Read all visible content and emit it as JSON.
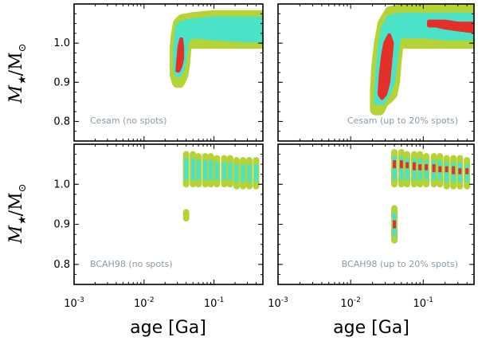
{
  "figure": {
    "xlabel": "age [Ga]",
    "ylabel_main": "M",
    "ylabel_sub": "★",
    "ylabel_rest": "/M",
    "ylabel_sun": "⊙"
  },
  "chart_data": [
    {
      "type": "scatter",
      "panel": "top-left",
      "annotation": "Cesam (no spots)",
      "xscale": "log",
      "xlim": [
        0.001,
        0.5
      ],
      "ylim": [
        0.75,
        1.1
      ],
      "xticks": [
        0.001,
        0.01,
        0.1
      ],
      "xticklabels": [
        "10-3",
        "10-2",
        "10-1"
      ],
      "yticks": [
        0.8,
        0.9,
        1.0
      ],
      "yticklabels": [
        "0.8",
        "0.9",
        "1.0"
      ],
      "colors": {
        "outer": "#b5d334",
        "inner": "#4be3c8",
        "core": "#e5302a"
      },
      "series": [
        {
          "name": "outer",
          "points": [
            [
              0.028,
              0.92
            ],
            [
              0.028,
              0.95
            ],
            [
              0.028,
              0.99
            ],
            [
              0.029,
              1.02
            ],
            [
              0.031,
              1.05
            ],
            [
              0.035,
              1.06
            ],
            [
              0.05,
              1.065
            ],
            [
              0.1,
              1.07
            ],
            [
              0.2,
              1.07
            ],
            [
              0.5,
              1.07
            ],
            [
              0.5,
              1.0
            ],
            [
              0.3,
              1.0
            ],
            [
              0.1,
              1.0
            ],
            [
              0.05,
              1.0
            ],
            [
              0.04,
              1.0
            ],
            [
              0.038,
              0.95
            ],
            [
              0.036,
              0.92
            ],
            [
              0.032,
              0.9
            ],
            [
              0.03,
              0.9
            ],
            [
              0.028,
              0.92
            ]
          ]
        },
        {
          "name": "inner",
          "points": [
            [
              0.029,
              0.93
            ],
            [
              0.029,
              0.99
            ],
            [
              0.031,
              1.04
            ],
            [
              0.035,
              1.05
            ],
            [
              0.05,
              1.055
            ],
            [
              0.1,
              1.06
            ],
            [
              0.2,
              1.06
            ],
            [
              0.5,
              1.06
            ],
            [
              0.5,
              1.01
            ],
            [
              0.3,
              1.01
            ],
            [
              0.1,
              1.015
            ],
            [
              0.05,
              1.02
            ],
            [
              0.04,
              1.01
            ],
            [
              0.037,
              0.96
            ],
            [
              0.034,
              0.93
            ],
            [
              0.031,
              0.92
            ],
            [
              0.029,
              0.93
            ]
          ]
        },
        {
          "name": "core",
          "points": [
            [
              0.03,
              0.93
            ],
            [
              0.031,
              0.96
            ],
            [
              0.032,
              0.99
            ],
            [
              0.034,
              1.01
            ],
            [
              0.035,
              0.99
            ],
            [
              0.035,
              0.96
            ],
            [
              0.033,
              0.94
            ],
            [
              0.031,
              0.93
            ]
          ]
        }
      ]
    },
    {
      "type": "scatter",
      "panel": "top-right",
      "annotation": "Cesam (up to 20% spots)",
      "xscale": "log",
      "xlim": [
        0.001,
        0.5
      ],
      "ylim": [
        0.75,
        1.1
      ],
      "xticks": [
        0.001,
        0.01,
        0.1
      ],
      "xticklabels": [
        "10-3",
        "10-2",
        "10-1"
      ],
      "yticks": [
        0.8,
        0.9,
        1.0
      ],
      "yticklabels": [
        "0.8",
        "0.9",
        "1.0"
      ],
      "colors": {
        "outer": "#b5d334",
        "inner": "#4be3c8",
        "core": "#e5302a"
      },
      "series": [
        {
          "name": "outer",
          "points": [
            [
              0.022,
              0.83
            ],
            [
              0.022,
              0.88
            ],
            [
              0.023,
              0.94
            ],
            [
              0.025,
              1.0
            ],
            [
              0.028,
              1.05
            ],
            [
              0.035,
              1.08
            ],
            [
              0.05,
              1.085
            ],
            [
              0.1,
              1.085
            ],
            [
              0.2,
              1.085
            ],
            [
              0.5,
              1.085
            ],
            [
              0.5,
              1.0
            ],
            [
              0.3,
              1.0
            ],
            [
              0.1,
              1.0
            ],
            [
              0.06,
              1.0
            ],
            [
              0.045,
              1.0
            ],
            [
              0.042,
              0.95
            ],
            [
              0.04,
              0.9
            ],
            [
              0.037,
              0.87
            ],
            [
              0.033,
              0.86
            ],
            [
              0.028,
              0.85
            ],
            [
              0.025,
              0.83
            ],
            [
              0.022,
              0.83
            ]
          ]
        },
        {
          "name": "inner",
          "points": [
            [
              0.023,
              0.85
            ],
            [
              0.024,
              0.92
            ],
            [
              0.026,
              0.99
            ],
            [
              0.029,
              1.04
            ],
            [
              0.035,
              1.065
            ],
            [
              0.05,
              1.07
            ],
            [
              0.1,
              1.07
            ],
            [
              0.5,
              1.07
            ],
            [
              0.5,
              1.015
            ],
            [
              0.2,
              1.015
            ],
            [
              0.1,
              1.02
            ],
            [
              0.06,
              1.02
            ],
            [
              0.045,
              1.02
            ],
            [
              0.04,
              0.95
            ],
            [
              0.037,
              0.9
            ],
            [
              0.032,
              0.87
            ],
            [
              0.027,
              0.85
            ],
            [
              0.023,
              0.85
            ]
          ]
        },
        {
          "name": "core",
          "points": [
            [
              0.025,
              0.87
            ],
            [
              0.026,
              0.92
            ],
            [
              0.028,
              0.97
            ],
            [
              0.03,
              1.0
            ],
            [
              0.034,
              1.02
            ],
            [
              0.037,
              1.0
            ],
            [
              0.035,
              0.95
            ],
            [
              0.033,
              0.9
            ],
            [
              0.03,
              0.87
            ],
            [
              0.027,
              0.86
            ]
          ]
        },
        {
          "name": "core-top",
          "points": [
            [
              0.12,
              1.055
            ],
            [
              0.15,
              1.055
            ],
            [
              0.2,
              1.055
            ],
            [
              0.3,
              1.05
            ],
            [
              0.5,
              1.05
            ],
            [
              0.5,
              1.03
            ],
            [
              0.3,
              1.035
            ],
            [
              0.2,
              1.04
            ],
            [
              0.15,
              1.045
            ],
            [
              0.12,
              1.045
            ]
          ]
        }
      ]
    },
    {
      "type": "scatter",
      "panel": "bottom-left",
      "annotation": "BCAH98 (no spots)",
      "xscale": "log",
      "xlim": [
        0.001,
        0.5
      ],
      "ylim": [
        0.75,
        1.1
      ],
      "xticks": [
        0.001,
        0.01,
        0.1
      ],
      "xticklabels": [
        "10-3",
        "10-2",
        "10-1"
      ],
      "yticks": [
        0.8,
        0.9,
        1.0
      ],
      "yticklabels": [
        "0.8",
        "0.9",
        "1.0"
      ],
      "colors": {
        "outer": "#b5d334",
        "inner": "#4be3c8",
        "core": "#e5302a"
      },
      "columns": [
        {
          "age": 0.04,
          "outer": [
            1.0,
            1.075
          ],
          "inner": [
            1.01,
            1.065
          ],
          "core": null
        },
        {
          "age": 0.05,
          "outer": [
            1.0,
            1.075
          ],
          "inner": [
            1.01,
            1.065
          ],
          "core": null
        },
        {
          "age": 0.06,
          "outer": [
            1.0,
            1.07
          ],
          "inner": [
            1.01,
            1.06
          ],
          "core": null
        },
        {
          "age": 0.075,
          "outer": [
            1.0,
            1.07
          ],
          "inner": [
            1.01,
            1.06
          ],
          "core": null
        },
        {
          "age": 0.09,
          "outer": [
            1.0,
            1.07
          ],
          "inner": [
            1.01,
            1.06
          ],
          "core": null
        },
        {
          "age": 0.11,
          "outer": [
            1.0,
            1.065
          ],
          "inner": [
            1.01,
            1.055
          ],
          "core": null
        },
        {
          "age": 0.14,
          "outer": [
            1.0,
            1.065
          ],
          "inner": [
            1.01,
            1.055
          ],
          "core": null
        },
        {
          "age": 0.17,
          "outer": [
            1.0,
            1.065
          ],
          "inner": [
            1.01,
            1.055
          ],
          "core": null
        },
        {
          "age": 0.21,
          "outer": [
            0.995,
            1.06
          ],
          "inner": [
            1.005,
            1.05
          ],
          "core": null
        },
        {
          "age": 0.26,
          "outer": [
            0.995,
            1.06
          ],
          "inner": [
            1.005,
            1.05
          ],
          "core": null
        },
        {
          "age": 0.32,
          "outer": [
            0.995,
            1.06
          ],
          "inner": [
            1.005,
            1.05
          ],
          "core": null
        },
        {
          "age": 0.4,
          "outer": [
            0.995,
            1.06
          ],
          "inner": [
            1.005,
            1.05
          ],
          "core": null
        },
        {
          "age": 0.04,
          "outer": [
            0.915,
            0.93
          ],
          "inner": null,
          "core": null
        }
      ]
    },
    {
      "type": "scatter",
      "panel": "bottom-right",
      "annotation": "BCAH98 (up to 20% spots)",
      "xscale": "log",
      "xlim": [
        0.001,
        0.5
      ],
      "ylim": [
        0.75,
        1.1
      ],
      "xticks": [
        0.001,
        0.01,
        0.1
      ],
      "xticklabels": [
        "10-3",
        "10-2",
        "10-1"
      ],
      "yticks": [
        0.8,
        0.9,
        1.0
      ],
      "yticklabels": [
        "0.8",
        "0.9",
        "1.0"
      ],
      "colors": {
        "outer": "#b5d334",
        "inner": "#4be3c8",
        "core": "#e5302a"
      },
      "columns": [
        {
          "age": 0.04,
          "outer": [
            0.86,
            0.94
          ],
          "inner": [
            0.87,
            0.93
          ],
          "core": [
            0.89,
            0.91
          ]
        },
        {
          "age": 0.04,
          "outer": [
            1.0,
            1.08
          ],
          "inner": [
            1.01,
            1.07
          ],
          "core": [
            1.04,
            1.06
          ]
        },
        {
          "age": 0.05,
          "outer": [
            1.0,
            1.08
          ],
          "inner": [
            1.01,
            1.07
          ],
          "core": [
            1.04,
            1.06
          ]
        },
        {
          "age": 0.06,
          "outer": [
            1.0,
            1.075
          ],
          "inner": [
            1.01,
            1.065
          ],
          "core": [
            1.04,
            1.055
          ]
        },
        {
          "age": 0.075,
          "outer": [
            1.0,
            1.075
          ],
          "inner": [
            1.01,
            1.065
          ],
          "core": [
            1.035,
            1.055
          ]
        },
        {
          "age": 0.09,
          "outer": [
            1.0,
            1.075
          ],
          "inner": [
            1.01,
            1.065
          ],
          "core": [
            1.035,
            1.05
          ]
        },
        {
          "age": 0.11,
          "outer": [
            1.0,
            1.07
          ],
          "inner": [
            1.01,
            1.06
          ],
          "core": [
            1.035,
            1.05
          ]
        },
        {
          "age": 0.14,
          "outer": [
            1.0,
            1.07
          ],
          "inner": [
            1.01,
            1.06
          ],
          "core": [
            1.03,
            1.05
          ]
        },
        {
          "age": 0.17,
          "outer": [
            1.0,
            1.07
          ],
          "inner": [
            1.01,
            1.06
          ],
          "core": [
            1.03,
            1.045
          ]
        },
        {
          "age": 0.21,
          "outer": [
            0.995,
            1.065
          ],
          "inner": [
            1.005,
            1.055
          ],
          "core": [
            1.03,
            1.045
          ]
        },
        {
          "age": 0.26,
          "outer": [
            0.995,
            1.065
          ],
          "inner": [
            1.005,
            1.055
          ],
          "core": [
            1.025,
            1.045
          ]
        },
        {
          "age": 0.32,
          "outer": [
            0.995,
            1.065
          ],
          "inner": [
            1.005,
            1.055
          ],
          "core": [
            1.025,
            1.04
          ]
        },
        {
          "age": 0.4,
          "outer": [
            0.995,
            1.06
          ],
          "inner": [
            1.005,
            1.05
          ],
          "core": [
            1.025,
            1.04
          ]
        }
      ]
    }
  ]
}
